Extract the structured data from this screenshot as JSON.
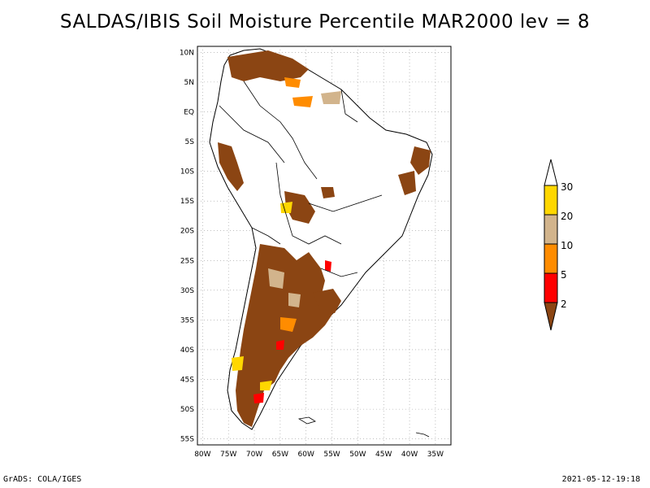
{
  "title": "SALDAS/IBIS Soil Moisture Percentile MAR2000 lev = 8",
  "footer": {
    "left": "GrADS: COLA/IGES",
    "right": "2021-05-12-19:18"
  },
  "map": {
    "lat_labels": [
      "10N",
      "5N",
      "EQ",
      "5S",
      "10S",
      "15S",
      "20S",
      "25S",
      "30S",
      "35S",
      "40S",
      "45S",
      "50S",
      "55S"
    ],
    "lon_labels": [
      "80W",
      "75W",
      "70W",
      "65W",
      "60W",
      "55W",
      "50W",
      "45W",
      "40W",
      "35W"
    ],
    "lat_range": [
      -56,
      11
    ],
    "lon_range": [
      -81,
      -32
    ],
    "grid": true
  },
  "legend": {
    "labels": [
      "30",
      "20",
      "10",
      "5",
      "2"
    ],
    "colors": [
      "#ffffff",
      "#ffd700",
      "#d2b48c",
      "#ff8c00",
      "#ff0000",
      "#8b4513"
    ],
    "color_names": [
      "above-30",
      "20-30",
      "10-20",
      "5-10",
      "2-5",
      "below-2"
    ]
  }
}
